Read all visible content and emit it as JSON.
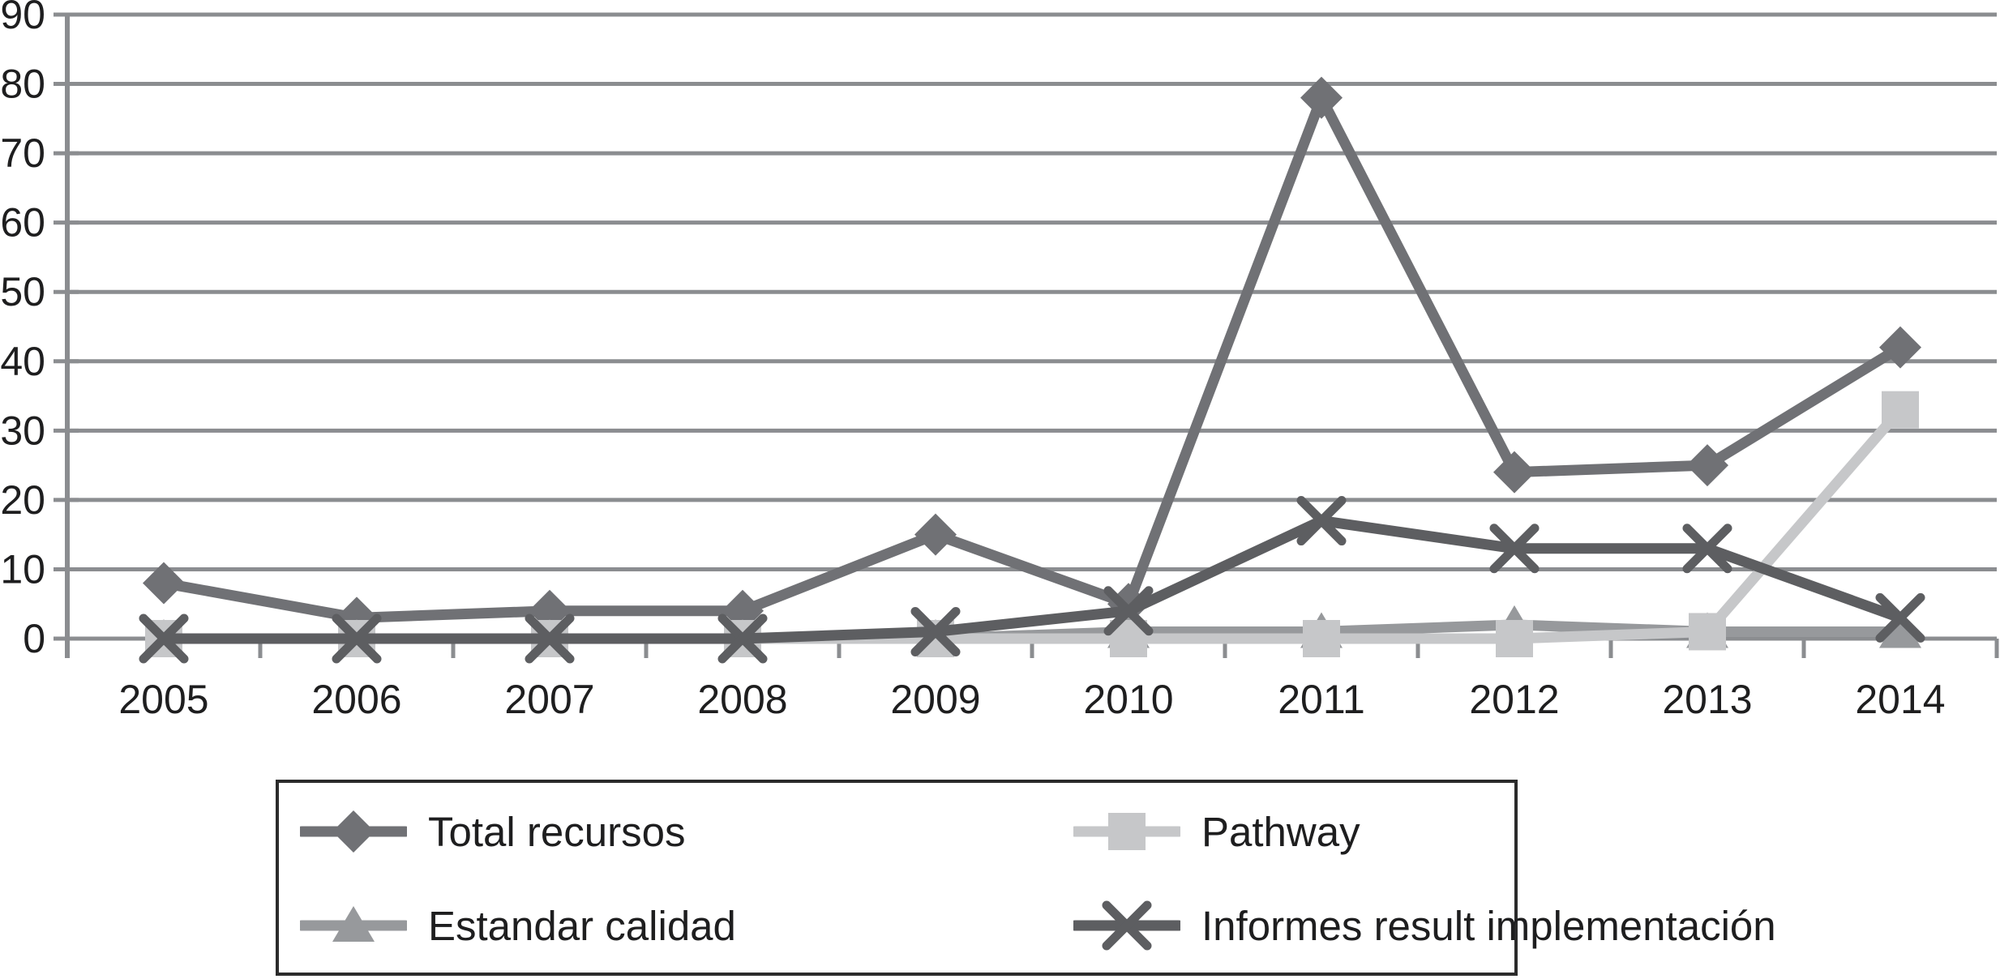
{
  "chart_data": {
    "type": "line",
    "title": "",
    "xlabel": "",
    "ylabel": "",
    "categories": [
      "2005",
      "2006",
      "2007",
      "2008",
      "2009",
      "2010",
      "2011",
      "2012",
      "2013",
      "2014"
    ],
    "series": [
      {
        "name": "Total recursos",
        "marker": "diamond",
        "color": "#707175",
        "values": [
          8,
          3,
          4,
          4,
          15,
          5,
          78,
          24,
          25,
          42
        ]
      },
      {
        "name": "Estandar calidad",
        "marker": "triangle",
        "color": "#97999c",
        "values": [
          0,
          0,
          0,
          0,
          0,
          1,
          1,
          2,
          1,
          1
        ]
      },
      {
        "name": "Pathway",
        "marker": "square",
        "color": "#c6c7c9",
        "values": [
          0,
          0,
          0,
          0,
          0,
          0,
          0,
          0,
          1,
          33
        ]
      },
      {
        "name": "Informes result implementación",
        "marker": "x",
        "color": "#5d5e61",
        "values": [
          0,
          0,
          0,
          0,
          1,
          4,
          17,
          13,
          13,
          3
        ]
      }
    ],
    "ylim": [
      0,
      90
    ],
    "ytick_step": 10,
    "ytick_labels": [
      "0",
      "10",
      "20",
      "30",
      "40",
      "50",
      "60",
      "70",
      "80",
      "90"
    ],
    "grid": "horizontal",
    "legend_position": "bottom"
  },
  "colors": {
    "background": "#ffffff",
    "gridline": "#8b8d90",
    "axis_line": "#8b8d90",
    "tick_text": "#1e1e1f",
    "legend_border": "#2b2b2b"
  }
}
